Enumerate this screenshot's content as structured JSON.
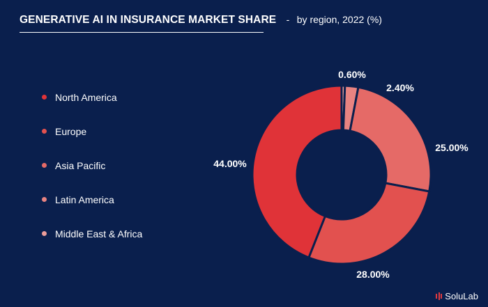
{
  "header": {
    "title": "GENERATIVE AI IN INSURANCE MARKET SHARE",
    "separator": "-",
    "subtitle": "by region, 2022 (%)"
  },
  "brand": {
    "name": "SoluLab",
    "icon": "solulab-logo-icon"
  },
  "chart_data": {
    "type": "pie",
    "donut": true,
    "title": "GENERATIVE AI IN INSURANCE MARKET SHARE",
    "subtitle": "by region, 2022 (%)",
    "legend_position": "left",
    "slices": [
      {
        "name": "North America",
        "value": 44.0,
        "label": "44.00%",
        "color": "#e03338"
      },
      {
        "name": "Europe",
        "value": 28.0,
        "label": "28.00%",
        "color": "#e2514f"
      },
      {
        "name": "Asia Pacific",
        "value": 25.0,
        "label": "25.00%",
        "color": "#e56a67"
      },
      {
        "name": "Latin America",
        "value": 2.4,
        "label": "2.40%",
        "color": "#e88381"
      },
      {
        "name": "Middle East & Africa",
        "value": 0.6,
        "label": "0.60%",
        "color": "#ec9d9a"
      }
    ]
  }
}
